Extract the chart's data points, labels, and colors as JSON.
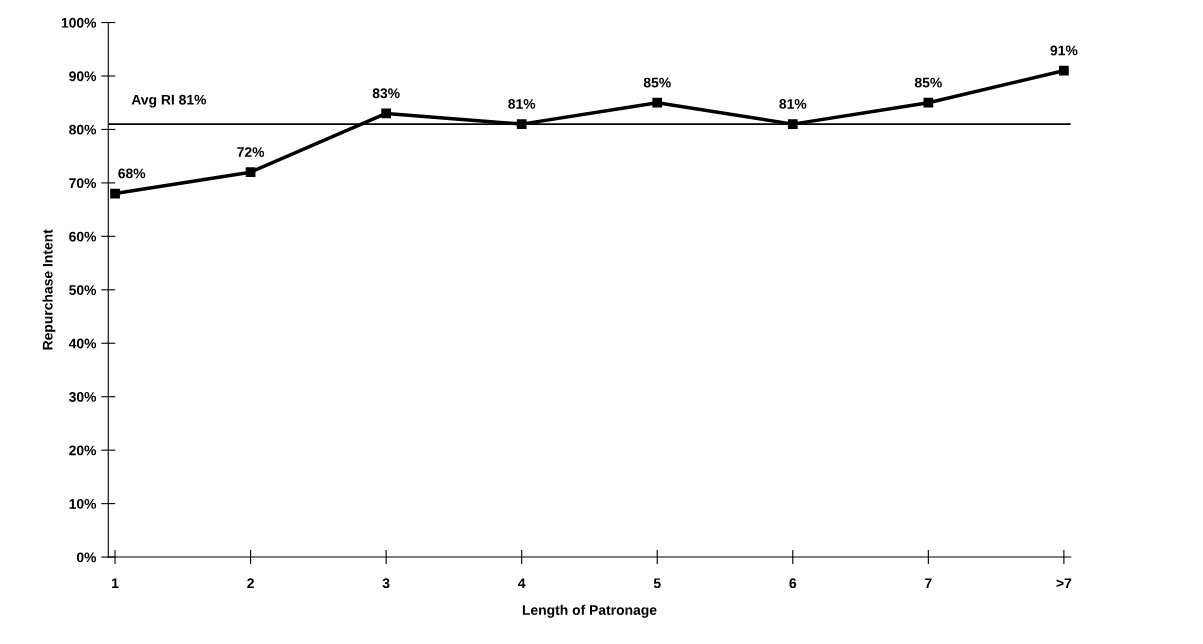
{
  "chart_data": {
    "type": "line",
    "xlabel": "Length of Patronage",
    "ylabel": "Repurchase Intent",
    "categories": [
      "1",
      "2",
      "3",
      "4",
      "5",
      "6",
      "7",
      ">7"
    ],
    "series": [
      {
        "color": "#000000",
        "values": [
          68,
          72,
          83,
          81,
          85,
          81,
          85,
          91
        ],
        "value_labels": [
          "68%",
          "72%",
          "83%",
          "81%",
          "85%",
          "81%",
          "85%",
          "91%"
        ]
      }
    ],
    "ylim": [
      0,
      100
    ],
    "yticks": [
      {
        "value": 0,
        "label": "0%"
      },
      {
        "value": 10,
        "label": "10%"
      },
      {
        "value": 20,
        "label": "20%"
      },
      {
        "value": 30,
        "label": "30%"
      },
      {
        "value": 40,
        "label": "40%"
      },
      {
        "value": 50,
        "label": "50%"
      },
      {
        "value": 60,
        "label": "60%"
      },
      {
        "value": 70,
        "label": "70%"
      },
      {
        "value": 80,
        "label": "80%"
      },
      {
        "value": 90,
        "label": "90%"
      },
      {
        "value": 100,
        "label": "100%"
      }
    ],
    "ref_lines": [
      {
        "axis": "y",
        "value": 81,
        "label": "Avg RI 81%",
        "color": "#000000"
      }
    ],
    "marker": "square",
    "line_style": "solid",
    "grid": false,
    "legend": false
  }
}
